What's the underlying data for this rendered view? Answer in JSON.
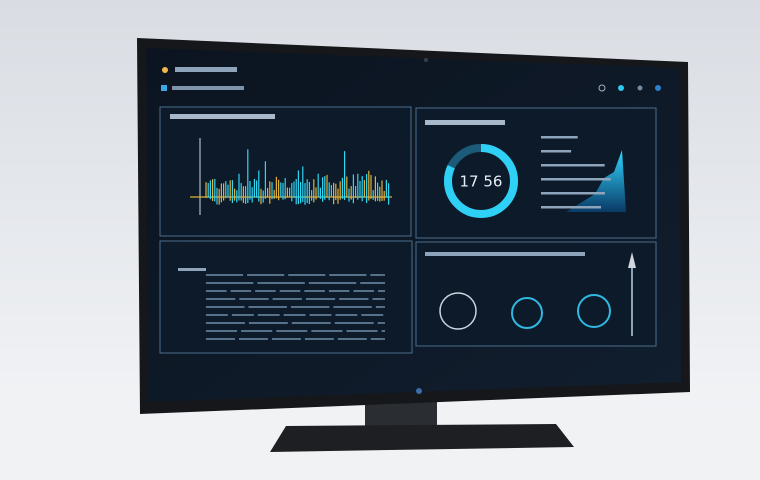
{
  "dashboard": {
    "donut": {
      "label": "17 56"
    }
  }
}
